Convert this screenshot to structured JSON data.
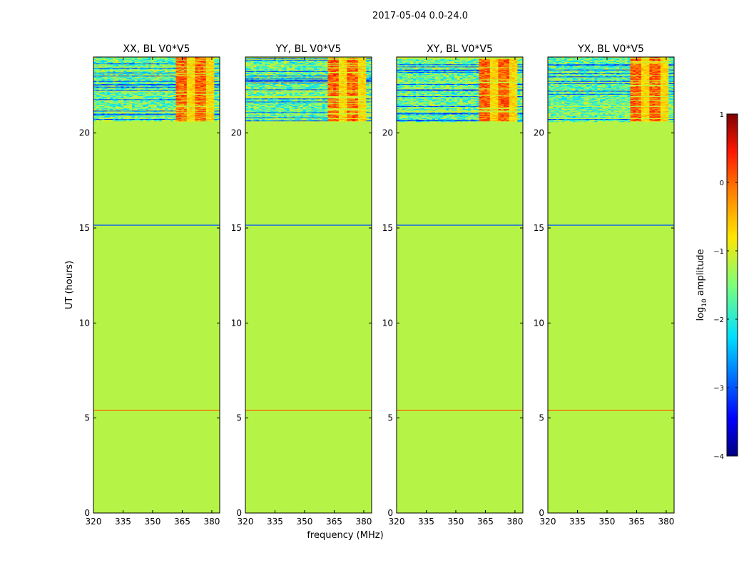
{
  "figure": {
    "suptitle": "2017-05-04 0.0-24.0"
  },
  "chart_data": {
    "type": "heatmap",
    "xlabel": "frequency (MHz)",
    "ylabel": "UT (hours)",
    "xlim": [
      320,
      384
    ],
    "ylim": [
      0,
      24
    ],
    "xticks": [
      320,
      335,
      350,
      365,
      380
    ],
    "yticks": [
      0,
      5,
      10,
      15,
      20
    ],
    "colormap": "jet",
    "panels": [
      {
        "title": "XX, BL V0*V5"
      },
      {
        "title": "YY, BL V0*V5"
      },
      {
        "title": "XY, BL V0*V5"
      },
      {
        "title": "YX, BL V0*V5"
      }
    ],
    "background_log10_amplitude": -1.2,
    "horizontal_features_ut_hours": [
      {
        "ut": 5.4,
        "log10_amplitude": 0.0
      },
      {
        "ut": 15.15,
        "log10_amplitude": -3.0
      }
    ],
    "active_region_ut_hours": [
      20.6,
      24.0
    ],
    "rfi_band_mhz": [
      361,
      381
    ],
    "colorbar": {
      "label": "log10 amplitude",
      "range": [
        -4,
        1
      ],
      "ticks": [
        -4,
        -3,
        -2,
        -1,
        0,
        1
      ]
    }
  }
}
